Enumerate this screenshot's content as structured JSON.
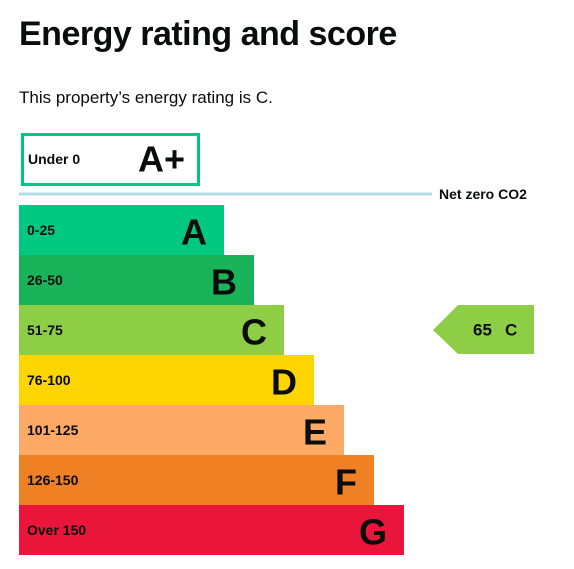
{
  "header": {
    "title": "Energy rating and score",
    "intro": "This property’s energy rating is C."
  },
  "top_band": {
    "range": "Under 0",
    "letter": "A+",
    "color": "#00c781"
  },
  "net_zero": {
    "label": "Net zero CO2",
    "color": "#b3dce6"
  },
  "bands": [
    {
      "range": "0-25",
      "letter": "A",
      "color": "#00c781"
    },
    {
      "range": "26-50",
      "letter": "B",
      "color": "#19b459"
    },
    {
      "range": "51-75",
      "letter": "C",
      "color": "#8dce46"
    },
    {
      "range": "76-100",
      "letter": "D",
      "color": "#ffd500"
    },
    {
      "range": "101-125",
      "letter": "E",
      "color": "#fcaa65"
    },
    {
      "range": "126-150",
      "letter": "F",
      "color": "#ef8023"
    },
    {
      "range": "Over 150",
      "letter": "G",
      "color": "#e9153b"
    }
  ],
  "current": {
    "score": 65,
    "letter": "C",
    "band": 2
  }
}
